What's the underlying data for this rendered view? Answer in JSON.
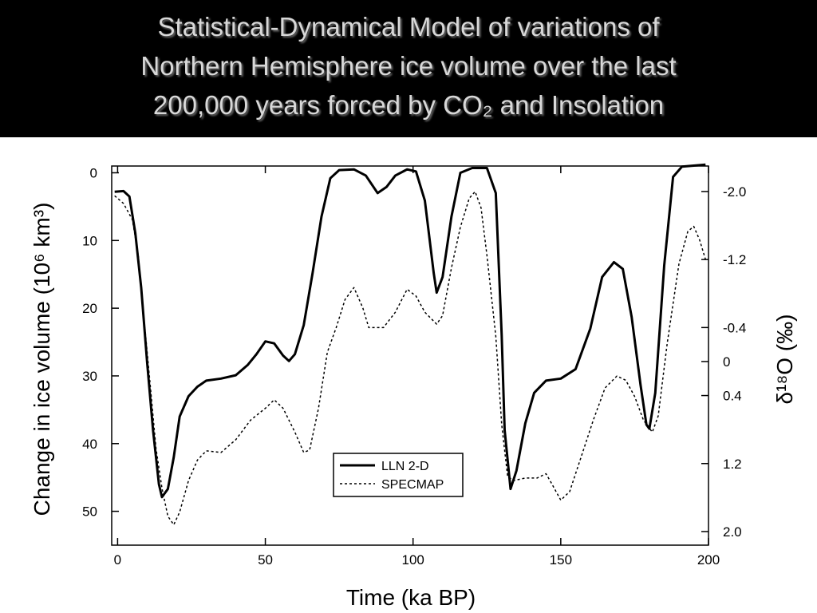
{
  "chart_data": {
    "type": "line",
    "title": [
      "Statistical-Dynamical Model of variations of",
      "Northern Hemisphere ice volume over the last",
      "200,000 years forced by CO₂ and Insolation"
    ],
    "xlabel": "Time (ka BP)",
    "ylabel": "Change in ice volume (10⁶ km³)",
    "y2label": "δ¹⁸O (‰)",
    "xlim": [
      -2,
      200
    ],
    "xticks": [
      0,
      50,
      100,
      150,
      200
    ],
    "ylim": [
      55,
      -1
    ],
    "yticks": [
      0,
      10,
      20,
      30,
      40,
      50
    ],
    "y2lim": [
      2.16,
      -2.3
    ],
    "y2ticks": [
      {
        "value": -2,
        "label": "-2.0"
      },
      -1.2,
      -0.4,
      0,
      0.4,
      1.2,
      {
        "value": 2,
        "label": "2.0"
      }
    ],
    "legend": "lower center",
    "series": [
      {
        "name": "LLN 2-D",
        "color": "#000000",
        "linestyle": "solid",
        "x": [
          -1,
          2,
          4,
          6,
          8,
          10,
          12,
          14,
          15,
          17,
          19,
          21,
          24,
          27,
          30,
          35,
          40,
          44,
          47,
          50,
          53,
          56,
          58,
          60,
          63,
          66,
          69,
          72,
          75,
          80,
          84,
          88,
          91,
          94,
          98,
          101,
          104,
          107,
          108,
          110,
          113,
          116,
          120,
          125,
          128,
          130,
          131,
          133,
          135,
          138,
          141,
          145,
          150,
          155,
          160,
          164,
          168,
          171,
          174,
          177,
          179,
          180,
          182,
          185,
          188,
          191,
          199
        ],
        "values": [
          2.8,
          2.7,
          3.5,
          8.9,
          17,
          28,
          38,
          46,
          47.9,
          46.7,
          42,
          36,
          33,
          31.6,
          30.7,
          30.4,
          29.9,
          28.4,
          26.8,
          24.9,
          25.2,
          27,
          27.8,
          26.8,
          22.5,
          14.8,
          6.5,
          0.8,
          -0.4,
          -0.5,
          0.4,
          3,
          2.1,
          0.4,
          -0.5,
          -0.2,
          4.1,
          14.8,
          17.7,
          15.4,
          6.5,
          0,
          -0.7,
          -0.7,
          3,
          24,
          38,
          46.7,
          44,
          37,
          32.5,
          30.7,
          30.4,
          29,
          23,
          15.4,
          13.2,
          14.2,
          21.3,
          31.3,
          37.2,
          37.8,
          32.5,
          13.7,
          0.6,
          -0.9,
          -1.2
        ]
      },
      {
        "name": "SPECMAP",
        "color": "#000000",
        "linestyle": "dotted",
        "axis": "y2",
        "x": [
          -1,
          2,
          5,
          7,
          9,
          11,
          13,
          15,
          17,
          19,
          21,
          24,
          27,
          30,
          35,
          40,
          45,
          50,
          53,
          56,
          60,
          63,
          65,
          68,
          71,
          74,
          77,
          80,
          83,
          85,
          90,
          94,
          98,
          101,
          104,
          108,
          110,
          113,
          116,
          119,
          121,
          123,
          125,
          128,
          130,
          132,
          134,
          138,
          142,
          145,
          147,
          150,
          153,
          157,
          161,
          165,
          169,
          172,
          175,
          178,
          181,
          183,
          186,
          190,
          193,
          195,
          197,
          199
        ],
        "values": [
          -1.95,
          -1.86,
          -1.67,
          -1.25,
          -0.49,
          0.26,
          1.02,
          1.49,
          1.82,
          1.92,
          1.77,
          1.4,
          1.16,
          1.05,
          1.07,
          0.92,
          0.69,
          0.55,
          0.45,
          0.55,
          0.83,
          1.07,
          1.04,
          0.55,
          -0.11,
          -0.4,
          -0.73,
          -0.87,
          -0.63,
          -0.4,
          -0.4,
          -0.58,
          -0.85,
          -0.77,
          -0.58,
          -0.44,
          -0.54,
          -1.1,
          -1.58,
          -1.92,
          -2.0,
          -1.81,
          -1.25,
          -0.3,
          0.74,
          1.35,
          1.4,
          1.37,
          1.37,
          1.32,
          1.44,
          1.63,
          1.53,
          1.11,
          0.69,
          0.31,
          0.17,
          0.22,
          0.41,
          0.69,
          0.83,
          0.64,
          -0.21,
          -1.15,
          -1.53,
          -1.59,
          -1.43,
          -1.2
        ]
      }
    ]
  }
}
